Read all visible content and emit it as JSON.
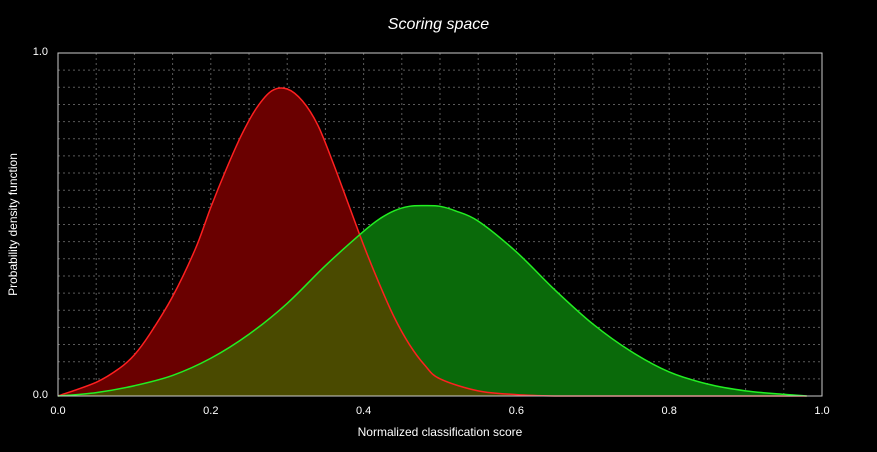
{
  "chart_data": {
    "type": "area",
    "title": "Scoring space",
    "xlabel": "Normalized classification score",
    "ylabel": "Probability density function",
    "xlim": [
      0.0,
      1.0
    ],
    "ylim": [
      0.0,
      1.0
    ],
    "x_ticks": [
      "0.0",
      "0.2",
      "0.4",
      "0.6",
      "0.8",
      "1.0"
    ],
    "y_ticks": [
      "0.0",
      "1.0"
    ],
    "grid": true,
    "colors": {
      "red_line": "#ff2020",
      "red_fill": "#6a0000",
      "green_line": "#22ee22",
      "green_fill": "#0a6a0a",
      "overlap_fill": "#4a4a00",
      "grid": "#5a5a5a"
    },
    "series": [
      {
        "color": "red",
        "x": [
          0.0,
          0.05,
          0.08,
          0.1,
          0.12,
          0.15,
          0.18,
          0.2,
          0.22,
          0.24,
          0.26,
          0.28,
          0.3,
          0.32,
          0.34,
          0.36,
          0.38,
          0.4,
          0.42,
          0.44,
          0.46,
          0.48,
          0.5,
          0.55,
          0.6,
          0.65,
          0.7,
          0.8,
          0.9,
          0.98
        ],
        "values": [
          0.0,
          0.04,
          0.08,
          0.12,
          0.18,
          0.29,
          0.43,
          0.55,
          0.66,
          0.76,
          0.84,
          0.89,
          0.895,
          0.86,
          0.79,
          0.68,
          0.56,
          0.44,
          0.33,
          0.23,
          0.15,
          0.09,
          0.05,
          0.015,
          0.004,
          0.0,
          0.0,
          0.0,
          0.0,
          0.0
        ]
      },
      {
        "color": "green",
        "x": [
          0.0,
          0.05,
          0.1,
          0.15,
          0.2,
          0.25,
          0.3,
          0.35,
          0.4,
          0.42,
          0.44,
          0.46,
          0.48,
          0.5,
          0.52,
          0.55,
          0.6,
          0.65,
          0.7,
          0.75,
          0.8,
          0.85,
          0.9,
          0.95,
          0.98
        ],
        "values": [
          0.0,
          0.01,
          0.03,
          0.06,
          0.11,
          0.18,
          0.27,
          0.38,
          0.48,
          0.515,
          0.54,
          0.553,
          0.555,
          0.553,
          0.54,
          0.51,
          0.42,
          0.31,
          0.21,
          0.13,
          0.07,
          0.035,
          0.015,
          0.005,
          0.0
        ]
      }
    ]
  }
}
